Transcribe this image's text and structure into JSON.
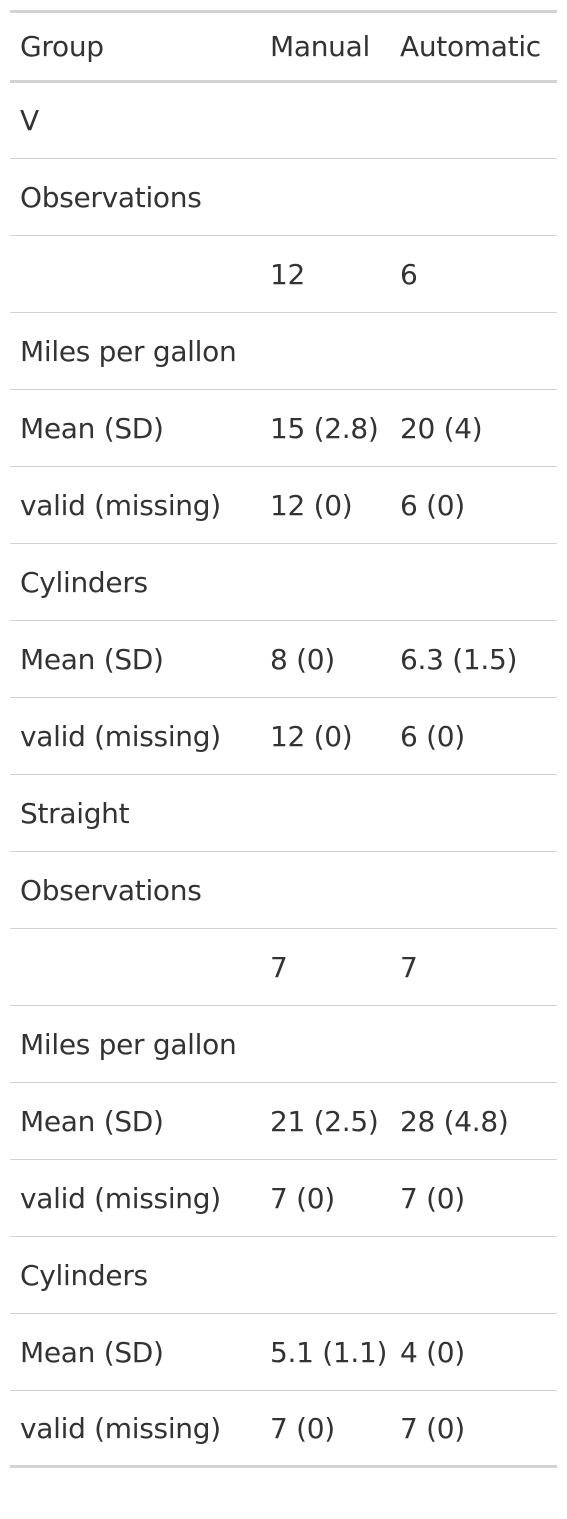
{
  "table": {
    "headers": [
      "Group",
      "Manual",
      "Automatic"
    ],
    "rows": [
      [
        "V",
        "",
        ""
      ],
      [
        "Observations",
        "",
        ""
      ],
      [
        "",
        "12",
        "6"
      ],
      [
        "Miles per gallon",
        "",
        ""
      ],
      [
        "Mean (SD)",
        "15 (2.8)",
        "20 (4)"
      ],
      [
        "valid (missing)",
        "12 (0)",
        "6 (0)"
      ],
      [
        "Cylinders",
        "",
        ""
      ],
      [
        "Mean (SD)",
        "8 (0)",
        "6.3 (1.5)"
      ],
      [
        "valid (missing)",
        "12 (0)",
        "6 (0)"
      ],
      [
        "Straight",
        "",
        ""
      ],
      [
        "Observations",
        "",
        ""
      ],
      [
        "",
        "7",
        "7"
      ],
      [
        "Miles per gallon",
        "",
        ""
      ],
      [
        "Mean (SD)",
        "21 (2.5)",
        "28 (4.8)"
      ],
      [
        "valid (missing)",
        "7 (0)",
        "7 (0)"
      ],
      [
        "Cylinders",
        "",
        ""
      ],
      [
        "Mean (SD)",
        "5.1 (1.1)",
        "4 (0)"
      ],
      [
        "valid (missing)",
        "7 (0)",
        "7 (0)"
      ]
    ]
  }
}
